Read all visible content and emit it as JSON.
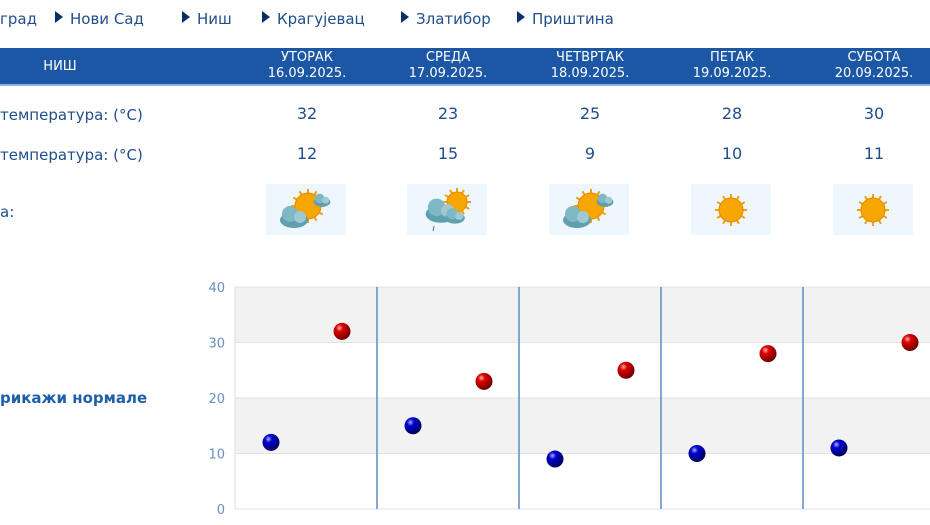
{
  "nav": {
    "items": [
      {
        "label": "град",
        "arrow": false
      },
      {
        "label": "Нови Сад",
        "arrow": true
      },
      {
        "label": "Ниш",
        "arrow": true
      },
      {
        "label": "Крагујевац",
        "arrow": true
      },
      {
        "label": "Златибор",
        "arrow": true
      },
      {
        "label": "Приштина",
        "arrow": true
      }
    ]
  },
  "table": {
    "city": "НИШ",
    "days": [
      {
        "name": "УТОРАК",
        "date": "16.09.2025.",
        "max": "32",
        "min": "12",
        "icon": "sun-cloud-icon"
      },
      {
        "name": "СРЕДА",
        "date": "17.09.2025.",
        "max": "23",
        "min": "15",
        "icon": "cloud-rain-sun-icon"
      },
      {
        "name": "ЧЕТВРТАК",
        "date": "18.09.2025.",
        "max": "25",
        "min": "9",
        "icon": "sun-cloud-icon"
      },
      {
        "name": "ПЕТАК",
        "date": "19.09.2025.",
        "max": "28",
        "min": "10",
        "icon": "sun-icon"
      },
      {
        "name": "СУБОТА",
        "date": "20.09.2025.",
        "max": "30",
        "min": "11",
        "icon": "sun-icon"
      }
    ],
    "row_max_label": " температура: (°C)",
    "row_min_label": "температура: (°C)",
    "row_icon_label": "а:"
  },
  "show_normals": "рикажи нормале",
  "colors": {
    "header": "#1c57a5",
    "text": "#1f4e8c",
    "max": "#e00000",
    "min": "#0000d0"
  },
  "chart_data": {
    "type": "scatter",
    "ylim": [
      0,
      40
    ],
    "yticks": [
      "0",
      "10",
      "20",
      "30",
      "40"
    ],
    "grid": true,
    "categories": [
      "16.09.2025.",
      "17.09.2025.",
      "18.09.2025.",
      "19.09.2025.",
      "20.09.2025."
    ],
    "series": [
      {
        "values": [
          12,
          15,
          9,
          10,
          11
        ],
        "color": "#0000d0"
      },
      {
        "values": [
          32,
          23,
          25,
          28,
          30
        ],
        "color": "#e00000"
      }
    ]
  }
}
